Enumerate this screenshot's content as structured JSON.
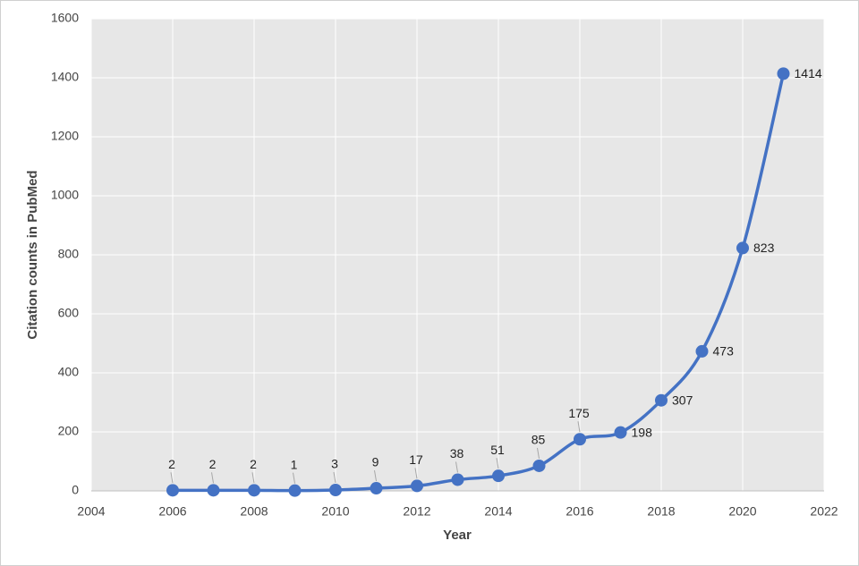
{
  "chart_data": {
    "type": "line",
    "x_label": "Year",
    "y_label": "Citation counts in PubMed",
    "x": [
      2006,
      2007,
      2008,
      2009,
      2010,
      2011,
      2012,
      2013,
      2014,
      2015,
      2016,
      2017,
      2018,
      2019,
      2020,
      2021
    ],
    "series": [
      {
        "color": "#4472c4",
        "values": [
          2,
          2,
          2,
          1,
          3,
          9,
          17,
          38,
          51,
          85,
          175,
          198,
          307,
          473,
          823,
          1414
        ]
      }
    ],
    "xlim": [
      2004,
      2022
    ],
    "xticks": [
      2004,
      2006,
      2008,
      2010,
      2012,
      2014,
      2016,
      2018,
      2020,
      2022
    ],
    "ylim": [
      0,
      1600
    ],
    "yticks": [
      0,
      200,
      400,
      600,
      800,
      1000,
      1200,
      1400,
      1600
    ],
    "grid": true
  }
}
